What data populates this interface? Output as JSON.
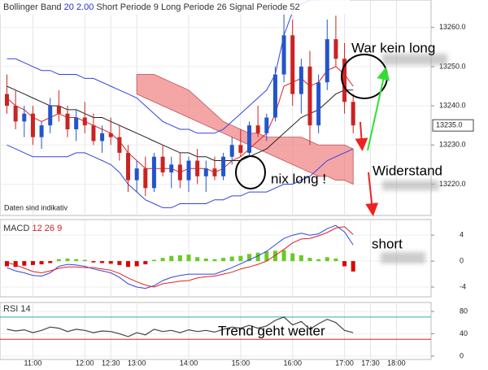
{
  "chart_data": [
    {
      "type": "candlestick",
      "header": {
        "bb_label": "Bollinger Band",
        "bb_period": 20,
        "bb_dev": "2.00",
        "short_label": "Short Periode",
        "short_value": 9,
        "long_label": "Long Periode",
        "long_value": 26,
        "signal_label": "Signal Periode",
        "signal_value": 52
      },
      "note": "Daten sind indikativ",
      "annotations": [
        "War kein long",
        "Widerstand",
        "nix long !",
        "short",
        "Trend geht weiter"
      ],
      "x": [
        630,
        640,
        650,
        660,
        670,
        680,
        690,
        700,
        710,
        720,
        730,
        740,
        750,
        760,
        770,
        780,
        790,
        800,
        810,
        820,
        830,
        840,
        850,
        860,
        870,
        880,
        890,
        900,
        910,
        920,
        930,
        940,
        950,
        960,
        970,
        980,
        990,
        1000,
        1010,
        1020,
        1030
      ],
      "xlim": [
        622,
        1120
      ],
      "xticks": [
        {
          "value": 660,
          "label": "11:00"
        },
        {
          "value": 720,
          "label": "12:00"
        },
        {
          "value": 750,
          "label": "12:30"
        },
        {
          "value": 780,
          "label": "13:00"
        },
        {
          "value": 840,
          "label": "14:00"
        },
        {
          "value": 900,
          "label": "15:00"
        },
        {
          "value": 960,
          "label": "16:00"
        },
        {
          "value": 1020,
          "label": "17:00"
        },
        {
          "value": 1050,
          "label": "17:30"
        },
        {
          "value": 1080,
          "label": "18:00"
        }
      ],
      "ylim": [
        13212,
        13267
      ],
      "yticks": [
        {
          "value": 13260,
          "label": "13260.0"
        },
        {
          "value": 13250,
          "label": "13250.0"
        },
        {
          "value": 13240,
          "label": "13240.0"
        },
        {
          "value": 13230,
          "label": "13230.0"
        },
        {
          "value": 13220,
          "label": "13220.0"
        }
      ],
      "last_price": {
        "value": 13235,
        "label": "13235.0"
      },
      "up_color": "#2255cc",
      "down_color": "#cc2222",
      "open": [
        13243,
        13240,
        13236,
        13238,
        13232,
        13235,
        13240,
        13238,
        13234,
        13237,
        13235,
        13231,
        13233,
        13232,
        13228,
        13221,
        13224,
        13219,
        13227,
        13223,
        13225,
        13221,
        13226,
        13222,
        13224,
        13222,
        13227,
        13230,
        13228,
        13235,
        13233,
        13237,
        13248,
        13258,
        13243,
        13250,
        13235,
        13246,
        13257,
        13252,
        13241
      ],
      "high": [
        13248,
        13244,
        13240,
        13240,
        13236,
        13242,
        13244,
        13240,
        13239,
        13241,
        13238,
        13235,
        13237,
        13235,
        13230,
        13226,
        13227,
        13228,
        13230,
        13227,
        13228,
        13227,
        13229,
        13226,
        13227,
        13228,
        13232,
        13234,
        13236,
        13240,
        13238,
        13250,
        13265,
        13262,
        13252,
        13254,
        13248,
        13262,
        13263,
        13256,
        13243
      ],
      "low": [
        13238,
        13234,
        13232,
        13230,
        13229,
        13233,
        13236,
        13232,
        13231,
        13233,
        13230,
        13228,
        13230,
        13226,
        13218,
        13218,
        13217,
        13218,
        13222,
        13219,
        13219,
        13218,
        13220,
        13218,
        13221,
        13221,
        13225,
        13227,
        13227,
        13232,
        13231,
        13236,
        13246,
        13240,
        13238,
        13230,
        13233,
        13244,
        13250,
        13238,
        13233
      ],
      "close": [
        13240,
        13236,
        13238,
        13232,
        13235,
        13240,
        13238,
        13234,
        13237,
        13235,
        13231,
        13233,
        13232,
        13228,
        13221,
        13224,
        13219,
        13227,
        13223,
        13225,
        13221,
        13226,
        13222,
        13224,
        13222,
        13227,
        13230,
        13228,
        13235,
        13233,
        13237,
        13248,
        13258,
        13243,
        13250,
        13235,
        13246,
        13257,
        13252,
        13241,
        13235
      ],
      "cloud": {
        "color": "#f08080",
        "top": [
          null,
          null,
          null,
          null,
          null,
          null,
          null,
          null,
          null,
          null,
          null,
          null,
          null,
          null,
          null,
          13248,
          13248,
          13248,
          13247,
          13246,
          13245,
          13244,
          13242,
          13240,
          13238,
          13236,
          13235,
          13234,
          13233,
          13233,
          13232,
          13232,
          13232,
          13232,
          13232,
          13231,
          13230,
          13230,
          13230,
          13230,
          13229
        ],
        "bottom": [
          null,
          null,
          null,
          null,
          null,
          null,
          null,
          null,
          null,
          null,
          null,
          null,
          null,
          null,
          null,
          13243,
          13242,
          13241,
          13240,
          13239,
          13238,
          13237,
          13236,
          13235,
          13234,
          13233,
          13232,
          13231,
          13230,
          13229,
          13228,
          13227,
          13226,
          13225,
          13224,
          13223,
          13222,
          13222,
          13221,
          13221,
          13220
        ]
      },
      "overlays": [
        {
          "color": "#3344dd",
          "values": [
            13252,
            13252,
            13251,
            13250,
            13249,
            13249,
            13248,
            13248,
            13248,
            13247,
            13247,
            13246,
            13245,
            13244,
            13243,
            13242,
            13240,
            13238,
            13236,
            13235,
            13234,
            13234,
            13233,
            13233,
            13233,
            13234,
            13236,
            13238,
            13240,
            13242,
            13244,
            13248,
            13258,
            13264,
            13266,
            13267,
            13267,
            13268,
            13268,
            13268,
            13268
          ]
        },
        {
          "color": "#3344dd",
          "values": [
            13230,
            13229,
            13228,
            13227,
            13227,
            13227,
            13227,
            13227,
            13228,
            13228,
            13227,
            13226,
            13225,
            13223,
            13220,
            13218,
            13216,
            13215,
            13214,
            13214,
            13215,
            13215,
            13215,
            13215,
            13216,
            13216,
            13217,
            13217,
            13218,
            13218,
            13218,
            13219,
            13220,
            13220,
            13221,
            13222,
            13224,
            13226,
            13227,
            13228,
            13229
          ]
        },
        {
          "color": "#dd2222",
          "values": [
            13242,
            13240,
            13239,
            13237,
            13236,
            13237,
            13238,
            13237,
            13237,
            13236,
            13235,
            13234,
            13233,
            13231,
            13228,
            13226,
            13224,
            13224,
            13224,
            13224,
            13223,
            13224,
            13224,
            13224,
            13223,
            13224,
            13226,
            13227,
            13229,
            13231,
            13233,
            13238,
            13245,
            13246,
            13247,
            13245,
            13246,
            13249,
            13250,
            13248,
            13245
          ]
        },
        {
          "color": "#222222",
          "values": [
            13245,
            13244,
            13243,
            13242,
            13241,
            13240,
            13240,
            13239,
            13239,
            13238,
            13237,
            13237,
            13236,
            13235,
            13234,
            13233,
            13232,
            13231,
            13230,
            13229,
            13228,
            13228,
            13227,
            13227,
            13226,
            13226,
            13226,
            13226,
            13227,
            13228,
            13229,
            13231,
            13233,
            13235,
            13237,
            13238,
            13239,
            13241,
            13243,
            13244,
            13244
          ]
        }
      ]
    },
    {
      "type": "macd",
      "header": {
        "label": "MACD",
        "fast": 12,
        "slow": 26,
        "signal": 9
      },
      "ylim": [
        -5.5,
        6.4
      ],
      "yticks": [
        4,
        0,
        -4
      ],
      "pos_color": "#66cc22",
      "neg_color": "#dd0000",
      "histogram": [
        -0.8,
        -0.9,
        -0.7,
        -0.6,
        -0.5,
        -0.3,
        0.3,
        0.4,
        0.3,
        0.2,
        -0.2,
        -0.3,
        -0.4,
        -0.6,
        -0.9,
        -0.8,
        -0.5,
        0.2,
        0.5,
        0.8,
        0.9,
        1.0,
        0.6,
        0.4,
        0.3,
        0.5,
        0.7,
        0.8,
        1.1,
        1.3,
        1.5,
        1.6,
        1.7,
        1.2,
        0.9,
        0.5,
        0.3,
        0.6,
        0.4,
        -0.8,
        -1.6
      ],
      "series": [
        {
          "color": "#3344dd",
          "values": [
            -1,
            -1.5,
            -1.8,
            -2.2,
            -2.3,
            -1.8,
            -0.8,
            -0.5,
            -0.6,
            -0.8,
            -1.2,
            -1.5,
            -1.8,
            -2.5,
            -3.5,
            -4.0,
            -4.2,
            -3.8,
            -3.0,
            -2.5,
            -2.2,
            -2.0,
            -2.0,
            -2.0,
            -2.0,
            -1.5,
            -1.0,
            -0.4,
            0.2,
            0.8,
            1.5,
            2.5,
            3.5,
            4.0,
            4.3,
            4.0,
            4.2,
            5.0,
            5.5,
            4.5,
            2.5
          ]
        },
        {
          "color": "#dd2222",
          "values": [
            -0.2,
            -0.6,
            -1.1,
            -1.6,
            -1.8,
            -1.5,
            -1.1,
            -0.9,
            -0.9,
            -1.0,
            -1.0,
            -1.2,
            -1.4,
            -1.9,
            -2.6,
            -3.2,
            -3.7,
            -4.0,
            -3.5,
            -3.3,
            -3.1,
            -3.0,
            -2.6,
            -2.4,
            -2.3,
            -2.0,
            -1.7,
            -1.2,
            -0.9,
            -0.5,
            0,
            0.9,
            1.8,
            2.8,
            3.4,
            3.5,
            3.9,
            4.4,
            5.1,
            5.3,
            4.1
          ]
        }
      ]
    },
    {
      "type": "rsi",
      "header": {
        "label": "RSI",
        "period": 14
      },
      "ylim": [
        -6,
        96
      ],
      "yticks": [
        80,
        40,
        0
      ],
      "levels": [
        {
          "value": 70,
          "color": "#33aaaa"
        },
        {
          "value": 30,
          "color": "#dd2222"
        }
      ],
      "color": "#444444",
      "values": [
        48,
        45,
        47,
        42,
        46,
        52,
        50,
        44,
        48,
        46,
        42,
        45,
        44,
        40,
        35,
        42,
        38,
        48,
        44,
        46,
        42,
        47,
        44,
        46,
        43,
        48,
        52,
        50,
        55,
        50,
        54,
        64,
        70,
        56,
        62,
        48,
        58,
        66,
        60,
        46,
        42
      ]
    }
  ]
}
